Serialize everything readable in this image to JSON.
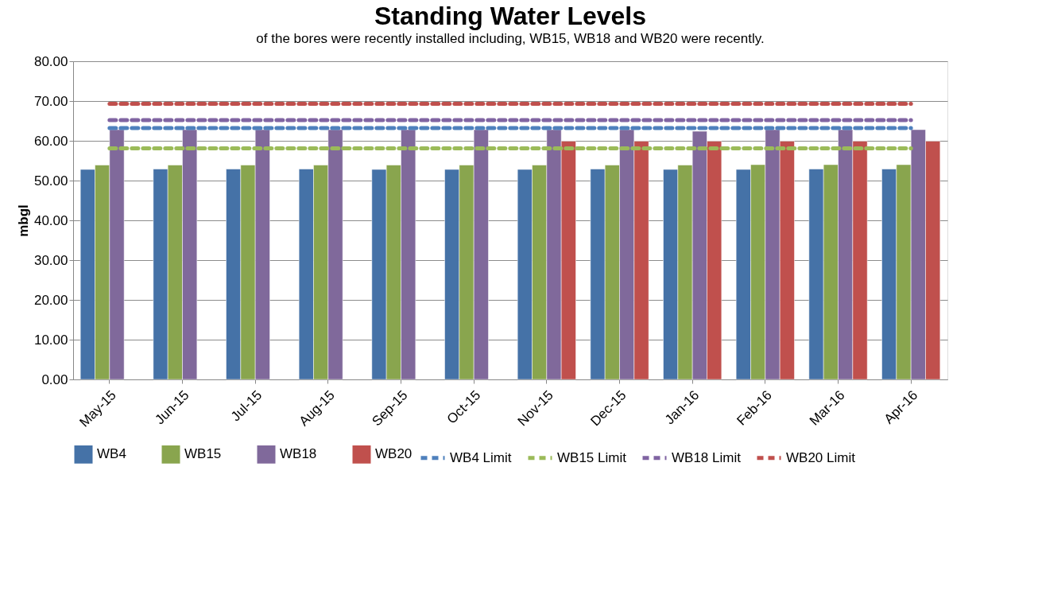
{
  "chart_data": {
    "type": "bar",
    "title": "Standing Water Levels",
    "ylabel": "mbgl",
    "annotations": [
      "of the bores were recently installed including, WB15, WB18 and WB20 were recently."
    ],
    "categories": [
      "May-15",
      "Jun-15",
      "Jul-15",
      "Aug-15",
      "Sep-15",
      "Oct-15",
      "Nov-15",
      "Dec-15",
      "Jan-16",
      "Feb-16",
      "Mar-16",
      "Apr-16"
    ],
    "series": [
      {
        "name": "WB4",
        "color": "#4572a7",
        "values": [
          52.8,
          52.9,
          52.9,
          52.9,
          52.8,
          52.8,
          52.8,
          52.9,
          52.8,
          52.8,
          52.9,
          52.9
        ]
      },
      {
        "name": "WB15",
        "color": "#89a54e",
        "values": [
          53.9,
          53.9,
          53.9,
          53.9,
          53.9,
          53.9,
          53.9,
          53.9,
          53.9,
          54.0,
          54.0,
          54.0
        ]
      },
      {
        "name": "WB18",
        "color": "#80699b",
        "values": [
          62.8,
          62.8,
          62.8,
          62.8,
          62.8,
          62.8,
          62.8,
          62.8,
          62.4,
          62.8,
          62.8,
          62.8
        ]
      },
      {
        "name": "WB20",
        "color": "#c0504d",
        "values": [
          null,
          null,
          null,
          null,
          null,
          null,
          59.9,
          59.9,
          59.9,
          59.9,
          59.9,
          59.9
        ]
      },
      {
        "name": "WB4 Limit",
        "type": "line",
        "line_style": "dashed",
        "color": "#4f81bd",
        "values": [
          63.2,
          63.2,
          63.2,
          63.2,
          63.2,
          63.2,
          63.2,
          63.2,
          63.2,
          63.2,
          63.2,
          63.2
        ]
      },
      {
        "name": "WB15 Limit",
        "type": "line",
        "line_style": "dashed",
        "color": "#9bbb59",
        "values": [
          58.1,
          58.1,
          58.1,
          58.1,
          58.1,
          58.1,
          58.1,
          58.1,
          58.1,
          58.1,
          58.1,
          58.1
        ]
      },
      {
        "name": "WB18 Limit",
        "type": "line",
        "line_style": "dashed",
        "color": "#8064a2",
        "values": [
          65.2,
          65.2,
          65.2,
          65.2,
          65.2,
          65.2,
          65.2,
          65.2,
          65.2,
          65.2,
          65.2,
          65.2
        ]
      },
      {
        "name": "WB20 Limit",
        "type": "line",
        "line_style": "dashed",
        "color": "#c0504d",
        "values": [
          69.3,
          69.3,
          69.3,
          69.3,
          69.3,
          69.3,
          69.3,
          69.3,
          69.3,
          69.3,
          69.3,
          69.3
        ]
      }
    ],
    "ylim": [
      0,
      80
    ],
    "yticks": [
      {
        "value": 0,
        "label": "0.00"
      },
      {
        "value": 10,
        "label": "10.00"
      },
      {
        "value": 20,
        "label": "20.00"
      },
      {
        "value": 30,
        "label": "30.00"
      },
      {
        "value": 40,
        "label": "40.00"
      },
      {
        "value": 50,
        "label": "50.00"
      },
      {
        "value": 60,
        "label": "60.00"
      },
      {
        "value": 70,
        "label": "70.00"
      },
      {
        "value": 80,
        "label": "80.00"
      }
    ],
    "grid": "y",
    "legend": "bottom"
  }
}
